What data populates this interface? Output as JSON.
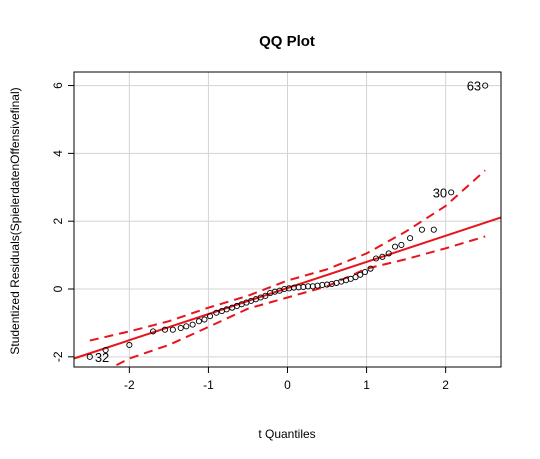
{
  "chart_data": {
    "type": "scatter",
    "title": "QQ Plot",
    "xlabel": "t Quantiles",
    "ylabel": "Studentized Residuals(SpielerdatenOffensivefinal)",
    "xlim": [
      -2.7,
      2.7
    ],
    "ylim": [
      -2.3,
      6.4
    ],
    "xticks": [
      -2,
      -1,
      0,
      1,
      2
    ],
    "yticks": [
      -2,
      0,
      2,
      4,
      6
    ],
    "grid": true,
    "points": [
      [
        -2.5,
        -2.0
      ],
      [
        -2.3,
        -1.8
      ],
      [
        -2.0,
        -1.65
      ],
      [
        -1.7,
        -1.25
      ],
      [
        -1.55,
        -1.2
      ],
      [
        -1.45,
        -1.2
      ],
      [
        -1.35,
        -1.15
      ],
      [
        -1.28,
        -1.1
      ],
      [
        -1.2,
        -1.05
      ],
      [
        -1.12,
        -0.95
      ],
      [
        -1.05,
        -0.9
      ],
      [
        -0.98,
        -0.8
      ],
      [
        -0.9,
        -0.7
      ],
      [
        -0.83,
        -0.65
      ],
      [
        -0.77,
        -0.6
      ],
      [
        -0.7,
        -0.55
      ],
      [
        -0.64,
        -0.5
      ],
      [
        -0.58,
        -0.45
      ],
      [
        -0.52,
        -0.4
      ],
      [
        -0.46,
        -0.35
      ],
      [
        -0.4,
        -0.3
      ],
      [
        -0.34,
        -0.25
      ],
      [
        -0.28,
        -0.2
      ],
      [
        -0.22,
        -0.12
      ],
      [
        -0.16,
        -0.08
      ],
      [
        -0.1,
        -0.05
      ],
      [
        -0.04,
        0.0
      ],
      [
        0.02,
        0.02
      ],
      [
        0.08,
        0.04
      ],
      [
        0.14,
        0.05
      ],
      [
        0.2,
        0.06
      ],
      [
        0.26,
        0.08
      ],
      [
        0.32,
        0.08
      ],
      [
        0.38,
        0.1
      ],
      [
        0.44,
        0.12
      ],
      [
        0.5,
        0.13
      ],
      [
        0.56,
        0.15
      ],
      [
        0.62,
        0.18
      ],
      [
        0.68,
        0.22
      ],
      [
        0.74,
        0.26
      ],
      [
        0.8,
        0.3
      ],
      [
        0.86,
        0.35
      ],
      [
        0.92,
        0.42
      ],
      [
        0.98,
        0.5
      ],
      [
        1.05,
        0.6
      ],
      [
        1.12,
        0.9
      ],
      [
        1.2,
        0.95
      ],
      [
        1.28,
        1.05
      ],
      [
        1.36,
        1.25
      ],
      [
        1.44,
        1.3
      ],
      [
        1.55,
        1.5
      ],
      [
        1.7,
        1.75
      ],
      [
        1.85,
        1.75
      ],
      [
        2.07,
        2.85
      ],
      [
        2.5,
        6.0
      ]
    ],
    "point_labels": [
      {
        "text": "63",
        "x": 2.5,
        "y": 6.0
      },
      {
        "text": "30",
        "x": 2.07,
        "y": 2.85
      },
      {
        "text": "32",
        "x": -2.5,
        "y": -2.0
      }
    ],
    "reference_line": {
      "intercept": 0.03,
      "slope": 0.77
    },
    "confidence_band": {
      "x": [
        -2.5,
        -2.0,
        -1.5,
        -1.0,
        -0.5,
        0.0,
        0.5,
        1.0,
        1.5,
        2.0,
        2.5
      ],
      "lower": [
        -2.65,
        -2.05,
        -1.65,
        -1.12,
        -0.58,
        -0.25,
        0.08,
        0.6,
        0.88,
        1.2,
        1.55
      ],
      "upper": [
        -1.52,
        -1.25,
        -0.95,
        -0.55,
        -0.2,
        0.25,
        0.58,
        1.05,
        1.7,
        2.45,
        3.5
      ]
    },
    "colors": {
      "line": "#e8141c",
      "points": "#000000",
      "grid": "#d3d3d3"
    }
  }
}
